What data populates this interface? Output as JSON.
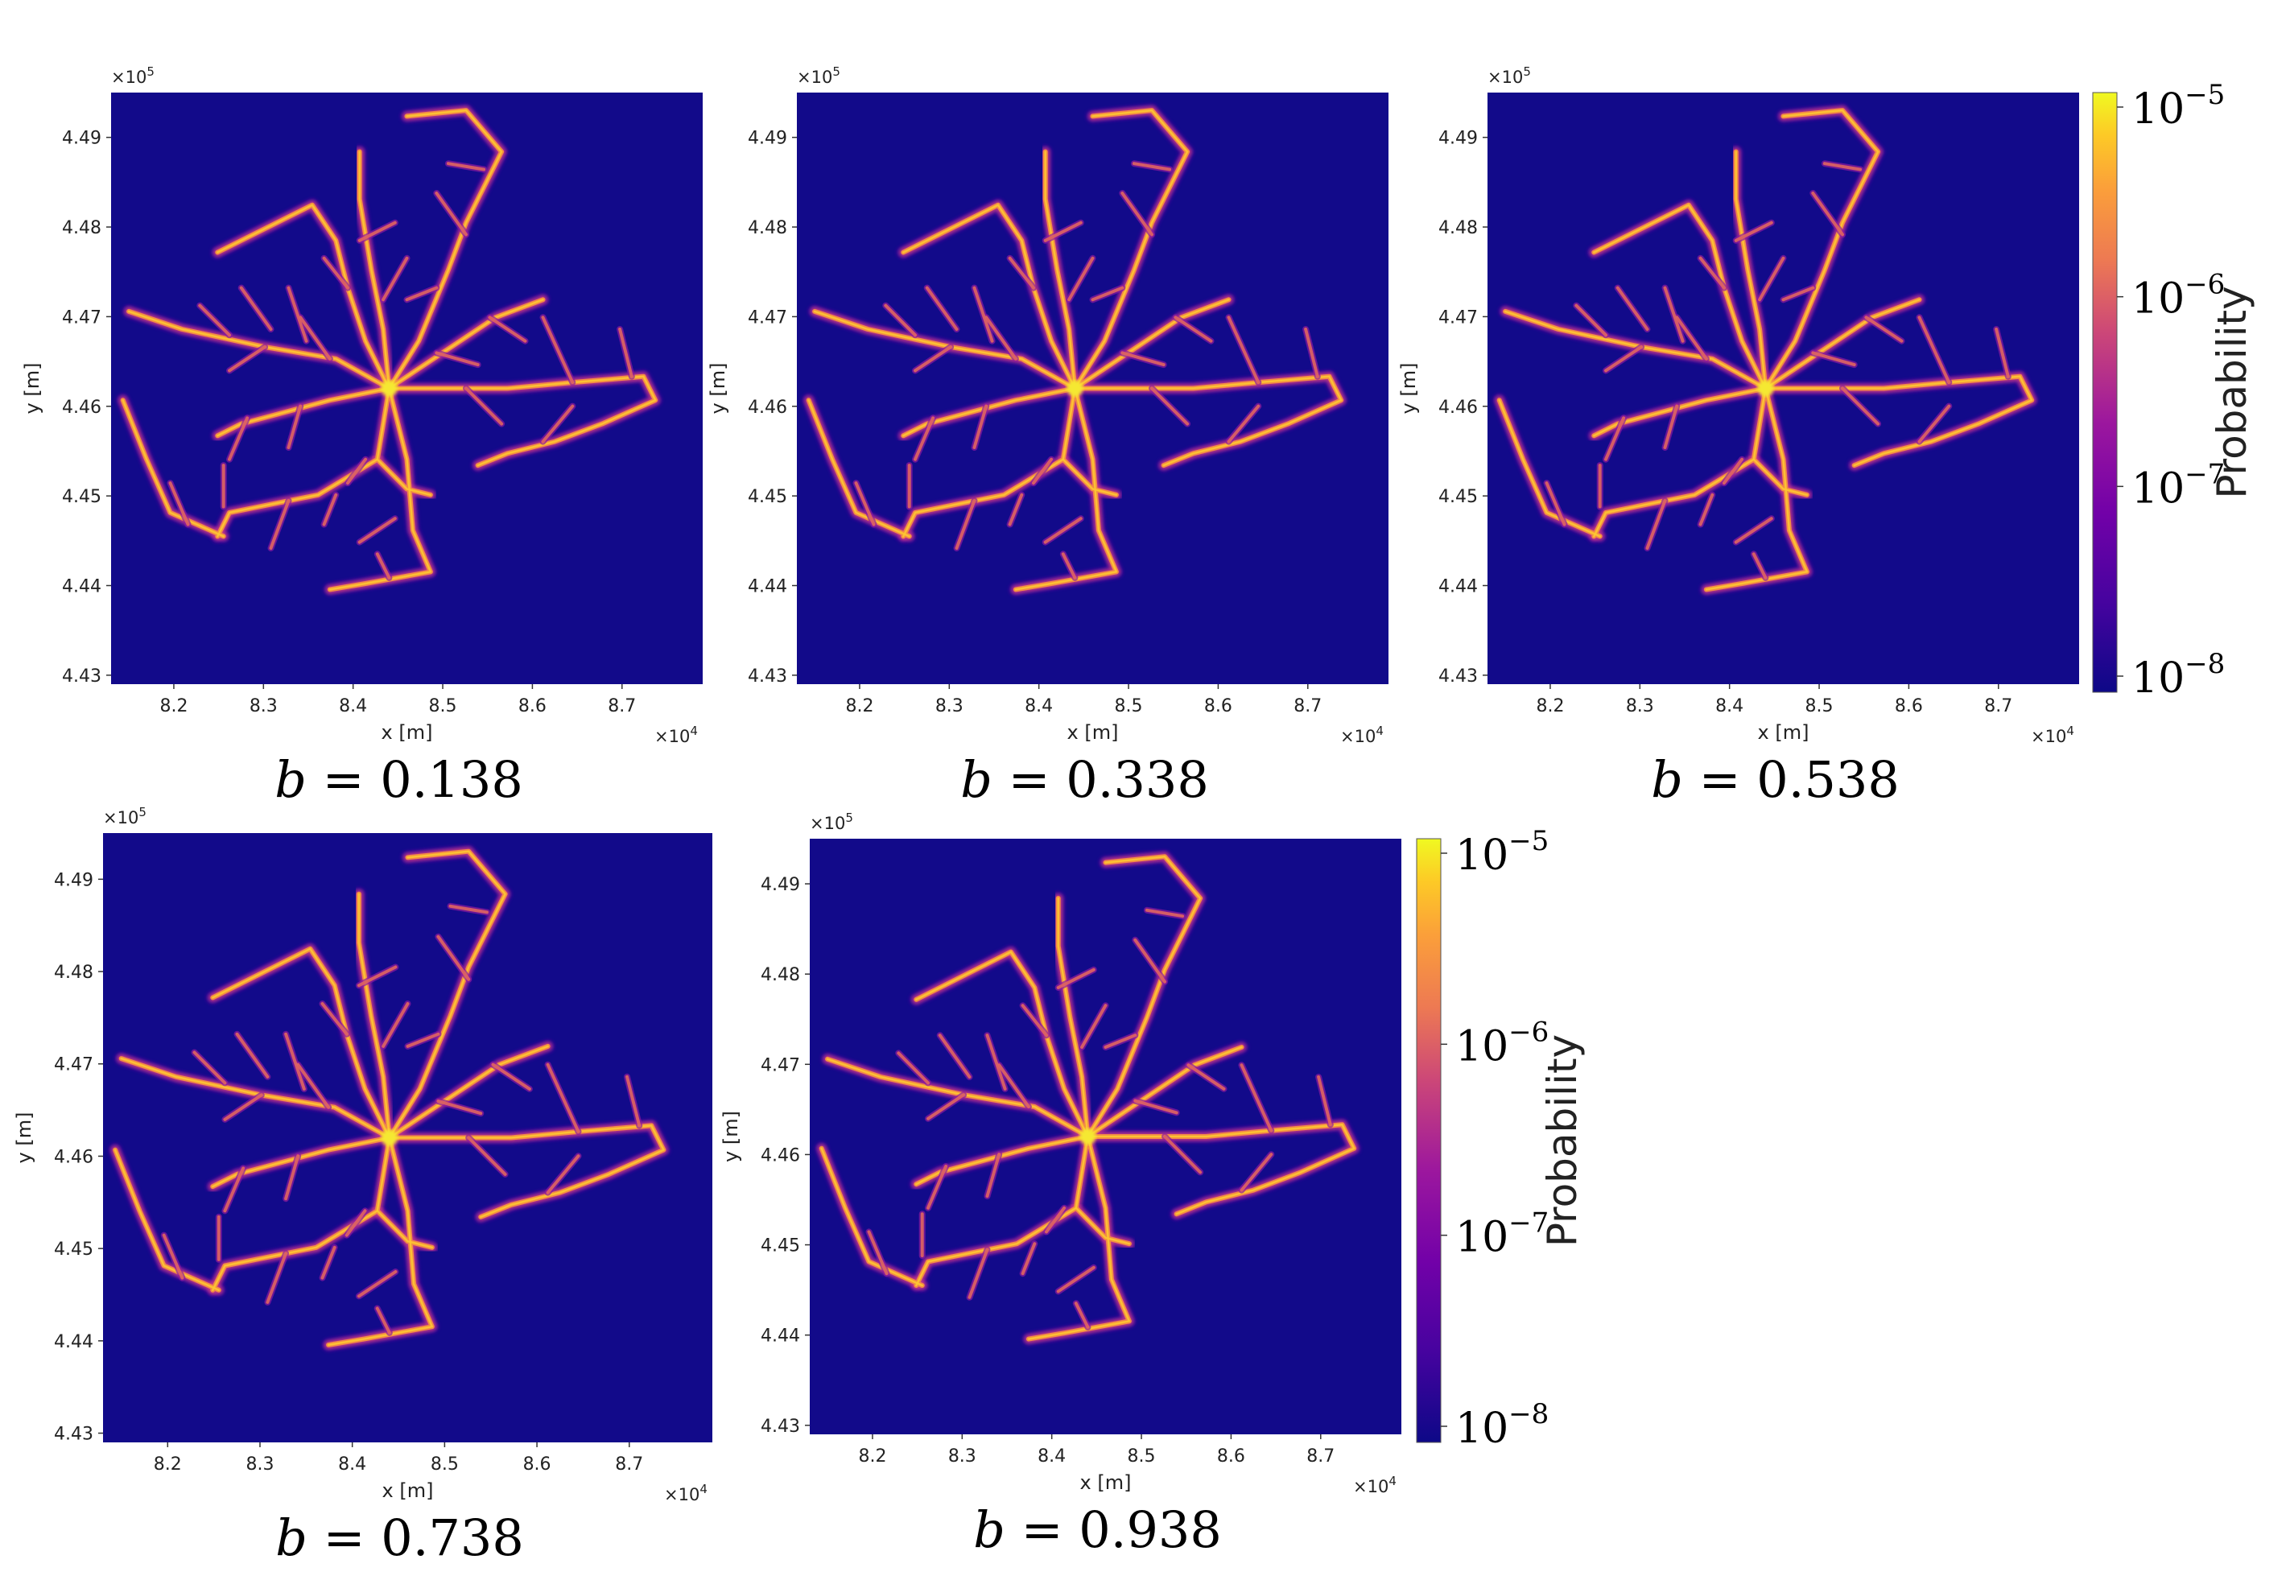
{
  "figure": {
    "background_color": "#120a8a",
    "colormap": [
      "#0d0887",
      "#5c01a6",
      "#9c179e",
      "#cc4778",
      "#ed7953",
      "#fb9f3a",
      "#fdca26",
      "#f0f921"
    ]
  },
  "chart_data": [
    {
      "type": "heatmap",
      "title": "",
      "caption": "b = 0.138",
      "caption_var": "b",
      "caption_value": "0.138",
      "xlabel": "x [m]",
      "ylabel": "y [m]",
      "x_scale_label": "×10",
      "x_scale_exp": "4",
      "y_scale_label": "×10",
      "y_scale_exp": "5",
      "x_ticks": [
        "8.2",
        "8.3",
        "8.4",
        "8.5",
        "8.6",
        "8.7"
      ],
      "y_ticks": [
        "4.43",
        "4.44",
        "4.45",
        "4.46",
        "4.47",
        "4.48",
        "4.49"
      ],
      "xlim": [
        8.13,
        8.79
      ],
      "ylim": [
        4.429,
        4.495
      ],
      "has_colorbar": true
    },
    {
      "type": "heatmap",
      "title": "",
      "caption": "b = 0.338",
      "caption_var": "b",
      "caption_value": "0.338",
      "xlabel": "x [m]",
      "ylabel": "y [m]",
      "x_scale_label": "×10",
      "x_scale_exp": "4",
      "y_scale_label": "×10",
      "y_scale_exp": "5",
      "x_ticks": [
        "8.2",
        "8.3",
        "8.4",
        "8.5",
        "8.6",
        "8.7"
      ],
      "y_ticks": [
        "4.43",
        "4.44",
        "4.45",
        "4.46",
        "4.47",
        "4.48",
        "4.49"
      ],
      "xlim": [
        8.13,
        8.79
      ],
      "ylim": [
        4.429,
        4.495
      ],
      "has_colorbar": false
    },
    {
      "type": "heatmap",
      "title": "",
      "caption": "b = 0.538",
      "caption_var": "b",
      "caption_value": "0.538",
      "xlabel": "x [m]",
      "ylabel": "y [m]",
      "x_scale_label": "×10",
      "x_scale_exp": "4",
      "y_scale_label": "×10",
      "y_scale_exp": "5",
      "x_ticks": [
        "8.2",
        "8.3",
        "8.4",
        "8.5",
        "8.6",
        "8.7"
      ],
      "y_ticks": [
        "4.43",
        "4.44",
        "4.45",
        "4.46",
        "4.47",
        "4.48",
        "4.49"
      ],
      "xlim": [
        8.13,
        8.79
      ],
      "ylim": [
        4.429,
        4.495
      ],
      "has_colorbar": true
    },
    {
      "type": "heatmap",
      "title": "",
      "caption": "b = 0.738",
      "caption_var": "b",
      "caption_value": "0.738",
      "xlabel": "x [m]",
      "ylabel": "y [m]",
      "x_scale_label": "×10",
      "x_scale_exp": "4",
      "y_scale_label": "×10",
      "y_scale_exp": "5",
      "x_ticks": [
        "8.2",
        "8.3",
        "8.4",
        "8.5",
        "8.6",
        "8.7"
      ],
      "y_ticks": [
        "4.43",
        "4.44",
        "4.45",
        "4.46",
        "4.47",
        "4.48",
        "4.49"
      ],
      "xlim": [
        8.13,
        8.79
      ],
      "ylim": [
        4.429,
        4.495
      ],
      "has_colorbar": false
    },
    {
      "type": "heatmap",
      "title": "",
      "caption": "b = 0.938",
      "caption_var": "b",
      "caption_value": "0.938",
      "xlabel": "x [m]",
      "ylabel": "y [m]",
      "x_scale_label": "×10",
      "x_scale_exp": "4",
      "y_scale_label": "×10",
      "y_scale_exp": "5",
      "x_ticks": [
        "8.2",
        "8.3",
        "8.4",
        "8.5",
        "8.6",
        "8.7"
      ],
      "y_ticks": [
        "4.43",
        "4.44",
        "4.45",
        "4.46",
        "4.47",
        "4.48",
        "4.49"
      ],
      "xlim": [
        8.13,
        8.79
      ],
      "ylim": [
        4.429,
        4.495
      ],
      "has_colorbar": true
    }
  ],
  "colorbar": {
    "label": "Probability",
    "tick_base": "10",
    "tick_exponents": [
      "−5",
      "−6",
      "−7",
      "−8"
    ]
  }
}
